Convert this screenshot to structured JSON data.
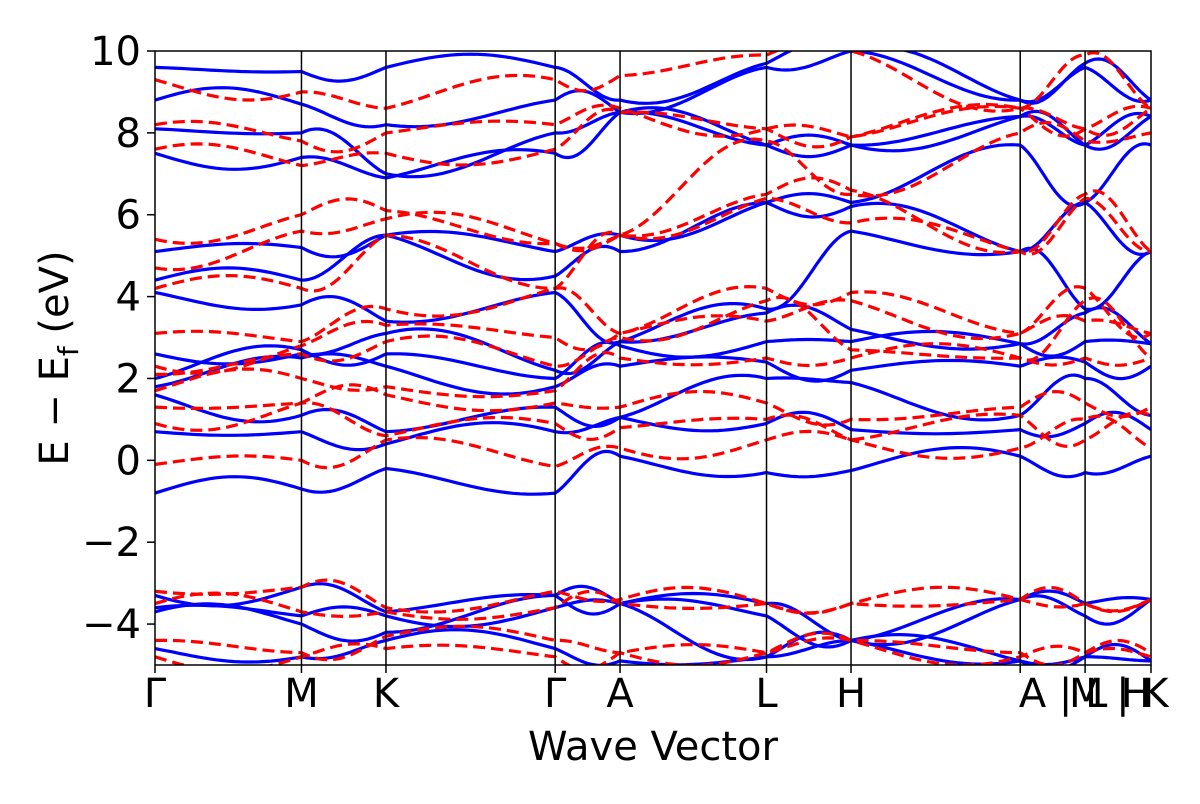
{
  "chart_data": {
    "type": "line",
    "title": "",
    "xlabel": "Wave Vector",
    "ylabel_main": "E − E",
    "ylabel_sub": "f",
    "ylabel_unit": " (eV)",
    "ylim": [
      -5,
      10
    ],
    "yticks": [
      -4,
      -2,
      0,
      2,
      4,
      6,
      8,
      10
    ],
    "ytick_labels": [
      "−4",
      "−2",
      "0",
      "2",
      "4",
      "6",
      "8",
      "10"
    ],
    "xlim": [
      0,
      6.8
    ],
    "kpoints": [
      {
        "x": 0.0,
        "label": "Γ"
      },
      {
        "x": 1.0,
        "label": "M"
      },
      {
        "x": 1.577,
        "label": "K"
      },
      {
        "x": 2.732,
        "label": "Γ"
      },
      {
        "x": 3.175,
        "label": "A"
      },
      {
        "x": 4.175,
        "label": "L"
      },
      {
        "x": 4.752,
        "label": "H"
      },
      {
        "x": 5.907,
        "label": "A"
      },
      {
        "x": 6.35,
        "label": "|L"
      },
      {
        "x": 6.35,
        "label": "M"
      },
      {
        "x": 6.8,
        "label": "|K"
      },
      {
        "x": 6.8,
        "label": "H"
      }
    ],
    "tick_label_text": [
      "Γ",
      "M",
      "K",
      "Γ",
      "A",
      "L",
      "H",
      "A | L",
      "M | K",
      "H"
    ],
    "grid": false,
    "legend": "none",
    "series": [
      {
        "style": "solid",
        "color": "#0000ff",
        "bands_at_kpoints": [
          [
            -0.8,
            -0.7,
            -0.2,
            -0.8,
            0.1,
            -0.3,
            -0.25,
            0.1
          ],
          [
            0.7,
            0.7,
            0.4,
            0.7,
            1.05,
            0.9,
            0.75,
            0.75
          ],
          [
            1.6,
            1.1,
            0.7,
            1.3,
            1.05,
            2.0,
            1.9,
            1.1
          ],
          [
            1.8,
            2.5,
            2.3,
            1.8,
            2.3,
            2.4,
            2.2,
            2.3
          ],
          [
            2.0,
            2.7,
            2.6,
            2.0,
            2.8,
            2.9,
            2.9,
            2.85
          ],
          [
            2.6,
            2.6,
            3.1,
            2.2,
            2.9,
            3.6,
            3.2,
            2.85
          ],
          [
            4.1,
            3.8,
            3.4,
            4.1,
            2.9,
            3.7,
            5.6,
            5.1
          ],
          [
            4.4,
            4.4,
            5.5,
            4.5,
            5.1,
            6.3,
            6.2,
            5.1
          ],
          [
            5.1,
            5.2,
            5.5,
            5.1,
            5.5,
            6.3,
            6.3,
            7.7
          ],
          [
            7.5,
            7.4,
            6.9,
            7.5,
            8.5,
            7.7,
            7.7,
            8.4
          ],
          [
            8.1,
            8.0,
            7.0,
            8.0,
            8.5,
            7.7,
            7.7,
            8.4
          ],
          [
            8.8,
            8.7,
            8.2,
            8.8,
            8.5,
            9.6,
            10.0,
            8.8
          ],
          [
            9.6,
            9.5,
            9.6,
            9.6,
            8.8,
            9.7,
            10.0,
            8.8
          ],
          [
            -3.3,
            -3.1,
            -3.7,
            -3.3,
            -3.5,
            -3.5,
            -4.4,
            -3.4
          ],
          [
            -3.6,
            -3.8,
            -3.8,
            -3.6,
            -3.5,
            -3.8,
            -4.4,
            -3.4
          ],
          [
            -3.7,
            -4.0,
            -4.2,
            -3.3,
            -3.5,
            -4.8,
            -4.4,
            -4.9
          ],
          [
            -4.6,
            -4.8,
            -4.4,
            -4.6,
            -4.9,
            -4.8,
            -4.4,
            -4.9
          ]
        ]
      },
      {
        "style": "dashed",
        "color": "#ff0000",
        "bands_at_kpoints": [
          [
            -0.1,
            0.0,
            0.5,
            -0.15,
            0.3,
            0.5,
            0.5,
            1.1
          ],
          [
            0.9,
            1.4,
            0.6,
            0.9,
            0.8,
            1.0,
            0.5,
            0.3
          ],
          [
            1.3,
            1.4,
            1.6,
            1.4,
            1.3,
            1.4,
            1.0,
            1.3
          ],
          [
            1.7,
            2.0,
            1.8,
            1.7,
            2.5,
            2.5,
            2.5,
            2.5
          ],
          [
            2.1,
            2.6,
            2.9,
            2.3,
            3.0,
            3.9,
            2.7,
            2.5
          ],
          [
            2.3,
            2.8,
            3.3,
            3.0,
            3.1,
            3.4,
            3.9,
            3.1
          ],
          [
            3.1,
            2.9,
            3.7,
            4.2,
            3.1,
            4.2,
            4.1,
            3.1
          ],
          [
            4.2,
            4.2,
            5.5,
            4.2,
            5.5,
            6.4,
            5.8,
            5.1
          ],
          [
            4.7,
            5.6,
            5.9,
            5.3,
            5.5,
            6.5,
            6.6,
            5.1
          ],
          [
            5.4,
            6.0,
            6.1,
            5.3,
            5.5,
            7.8,
            6.5,
            8.0
          ],
          [
            7.6,
            7.2,
            7.5,
            7.6,
            8.5,
            8.1,
            7.9,
            8.6
          ],
          [
            8.2,
            7.8,
            8.0,
            8.2,
            8.6,
            8.1,
            7.9,
            8.6
          ],
          [
            9.3,
            9.0,
            8.6,
            9.3,
            9.4,
            9.9,
            10.0,
            8.6
          ],
          [
            -3.2,
            -3.1,
            -3.6,
            -3.2,
            -3.4,
            -3.5,
            -3.5,
            -3.4
          ],
          [
            -3.5,
            -3.7,
            -3.7,
            -3.6,
            -3.5,
            -3.5,
            -3.5,
            -3.4
          ],
          [
            -4.4,
            -4.7,
            -4.3,
            -4.4,
            -4.7,
            -4.7,
            -4.4,
            -4.7
          ],
          [
            -4.8,
            -4.8,
            -4.6,
            -4.8,
            -4.7,
            -4.7,
            -4.4,
            -4.8
          ]
        ]
      }
    ]
  }
}
